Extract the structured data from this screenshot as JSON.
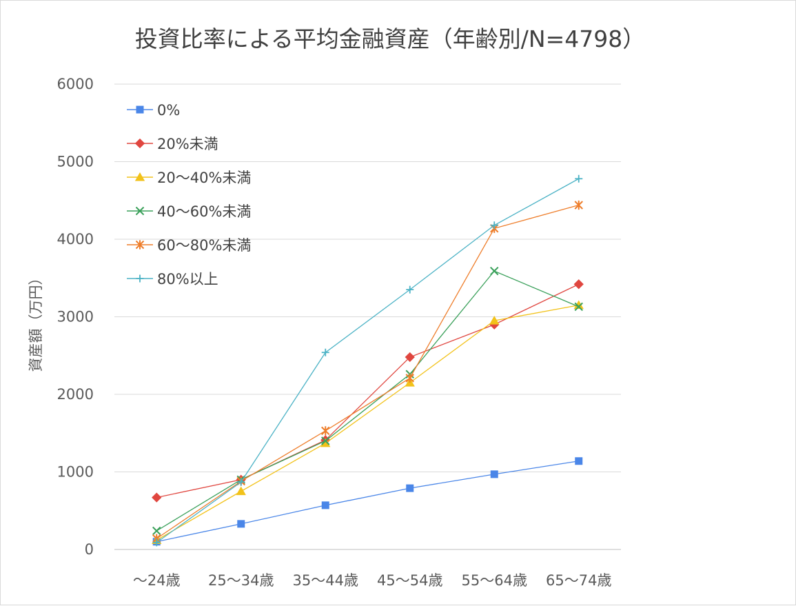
{
  "chart_data": {
    "type": "line",
    "title": "投資比率による平均金融資産（年齢別/N=4798）",
    "xlabel": "",
    "ylabel": "資産額（万円）",
    "ylim": [
      0,
      6000
    ],
    "yticks": [
      0,
      1000,
      2000,
      3000,
      4000,
      5000,
      6000
    ],
    "grid": "horizontal",
    "legend_position": "top-left (inside plot)",
    "categories": [
      "～24歳",
      "25～34歳",
      "35～44歳",
      "45～54歳",
      "55～64歳",
      "65～74歳"
    ],
    "series": [
      {
        "name": "0%",
        "color": "#4a86e8",
        "marker": "square",
        "values": [
          100,
          330,
          570,
          790,
          970,
          1140
        ]
      },
      {
        "name": "20%未満",
        "color": "#e0463f",
        "marker": "diamond",
        "values": [
          670,
          900,
          1410,
          2480,
          2900,
          3420
        ]
      },
      {
        "name": "20～40%未満",
        "color": "#f2c21a",
        "marker": "triangle",
        "values": [
          120,
          750,
          1370,
          2150,
          2950,
          3150
        ]
      },
      {
        "name": "40～60%未満",
        "color": "#3aa05a",
        "marker": "x",
        "values": [
          240,
          900,
          1400,
          2260,
          3590,
          3130
        ]
      },
      {
        "name": "60～80%未満",
        "color": "#ee7d2a",
        "marker": "asterisk",
        "values": [
          140,
          880,
          1530,
          2210,
          4140,
          4440
        ]
      },
      {
        "name": "80%以上",
        "color": "#4bb2c5",
        "marker": "plus",
        "values": [
          90,
          870,
          2540,
          3350,
          4180,
          4780
        ]
      }
    ]
  }
}
